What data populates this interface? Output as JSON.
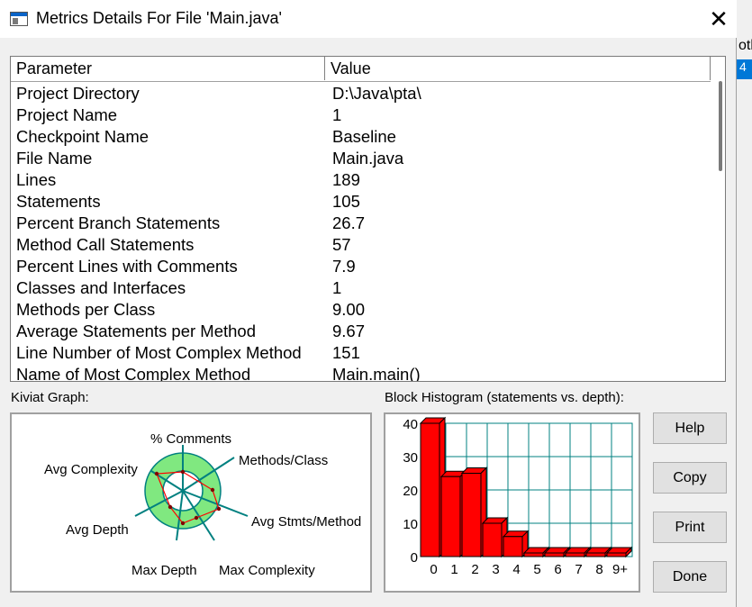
{
  "window": {
    "title": "Metrics Details For File 'Main.java'",
    "close_symbol": "✕"
  },
  "background_window": {
    "partial_text": "otl",
    "partial_selected": "4"
  },
  "table": {
    "headers": [
      "Parameter",
      "Value"
    ],
    "rows": [
      {
        "param": "Project Directory",
        "value": "D:\\Java\\pta\\"
      },
      {
        "param": "Project Name",
        "value": "1"
      },
      {
        "param": "Checkpoint Name",
        "value": "Baseline"
      },
      {
        "param": "File Name",
        "value": "Main.java"
      },
      {
        "param": "Lines",
        "value": "189"
      },
      {
        "param": "Statements",
        "value": "105"
      },
      {
        "param": "Percent Branch Statements",
        "value": "26.7"
      },
      {
        "param": "Method Call Statements",
        "value": "57"
      },
      {
        "param": "Percent Lines with Comments",
        "value": "7.9"
      },
      {
        "param": "Classes and Interfaces",
        "value": "1"
      },
      {
        "param": "Methods per Class",
        "value": "9.00"
      },
      {
        "param": "Average Statements per Method",
        "value": "9.67"
      },
      {
        "param": "Line Number of Most Complex Method",
        "value": "151"
      },
      {
        "param": "Name of Most Complex Method",
        "value": "Main.main()"
      }
    ]
  },
  "kiviat": {
    "label": "Kiviat Graph:",
    "axes": [
      "% Comments",
      "Methods/Class",
      "Avg Stmts/Method",
      "Max Complexity",
      "Max Depth",
      "Avg Depth",
      "Avg Complexity"
    ],
    "colors": {
      "outer_ring": "#80e880",
      "inner_ring": "#ffffff",
      "axis": "#008080",
      "polygon": "#ff0000",
      "marker": "#800000"
    }
  },
  "histogram": {
    "label": "Block Histogram (statements vs. depth):",
    "colors": {
      "bar": "#ff0000",
      "grid": "#008080",
      "outline": "#000000"
    }
  },
  "chart_data": {
    "type": "bar",
    "title": "Block Histogram (statements vs. depth):",
    "categories": [
      "0",
      "1",
      "2",
      "3",
      "4",
      "5",
      "6",
      "7",
      "8",
      "9+"
    ],
    "values": [
      40,
      24,
      25,
      10,
      6,
      0,
      0,
      0,
      0,
      0
    ],
    "yticks": [
      0,
      10,
      20,
      30,
      40
    ],
    "ylim": [
      0,
      40
    ],
    "grid": true
  },
  "buttons": {
    "help": "Help",
    "copy": "Copy",
    "print": "Print",
    "done": "Done"
  }
}
